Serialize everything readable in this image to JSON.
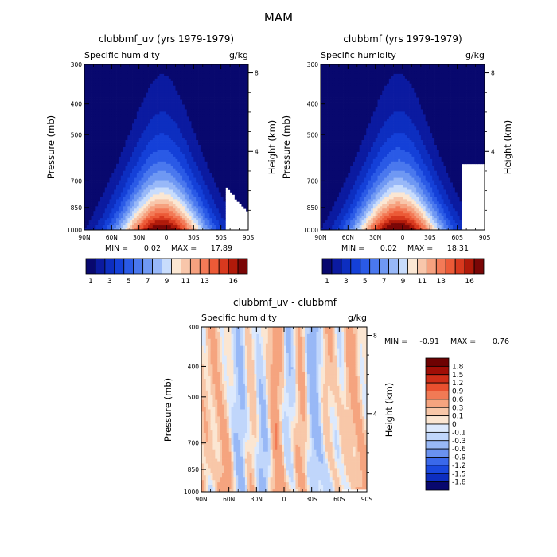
{
  "figure": {
    "title": "MAM"
  },
  "colors": {
    "abs": [
      "#08086e",
      "#0b1aa0",
      "#0d2ec0",
      "#1440d8",
      "#2a5ae6",
      "#4a78ee",
      "#6f98f3",
      "#98b8f8",
      "#c8dcfc",
      "#fbe7d3",
      "#f8c6aa",
      "#f6a17f",
      "#f37a57",
      "#ec5a37",
      "#d8391e",
      "#b01a0a",
      "#7a0606"
    ],
    "diff": [
      "#08086e",
      "#0d2ec0",
      "#1a48de",
      "#3a68ea",
      "#6a92f0",
      "#98b8f6",
      "#c0d6fb",
      "#dce9fd",
      "#fbe6d2",
      "#f8c7a8",
      "#f5a47f",
      "#f17a55",
      "#e9502f",
      "#cf2e18",
      "#a00e06",
      "#6e0202"
    ]
  },
  "chart_data": [
    {
      "type": "contour",
      "title": "clubbmf_uv (yrs 1979-1979)",
      "left_label": "Specific humidity",
      "right_label": "g/kg",
      "ylabel": "Pressure (mb)",
      "ylabel_right": "Height (km)",
      "x_ticks": [
        "90N",
        "60N",
        "30N",
        "0",
        "30S",
        "60S",
        "90S"
      ],
      "xlim": [
        90,
        -90
      ],
      "y_ticks": [
        "300",
        "400",
        "500",
        "700",
        "850",
        "1000"
      ],
      "ylim": [
        300,
        1000
      ],
      "height_ticks": [
        "8",
        "4"
      ],
      "min_label": "MIN =",
      "min_value": "0.02",
      "max_label": "MAX =",
      "max_value": "17.89",
      "field_max": 17.89,
      "colorbar_labels": [
        "1",
        "3",
        "5",
        "7",
        "9",
        "11",
        "13",
        "16"
      ],
      "contour_levels": [
        1,
        2,
        3,
        4,
        5,
        6,
        7,
        8,
        9,
        10,
        11,
        12,
        13,
        14,
        15,
        16
      ]
    },
    {
      "type": "contour",
      "title": "clubbmf (yrs 1979-1979)",
      "left_label": "Specific humidity",
      "right_label": "g/kg",
      "ylabel": "Pressure (mb)",
      "ylabel_right": "Height (km)",
      "x_ticks": [
        "90N",
        "60N",
        "30N",
        "0",
        "30S",
        "60S",
        "90S"
      ],
      "xlim": [
        90,
        -90
      ],
      "y_ticks": [
        "300",
        "400",
        "500",
        "700",
        "850",
        "1000"
      ],
      "ylim": [
        300,
        1000
      ],
      "height_ticks": [
        "8",
        "4"
      ],
      "min_label": "MIN =",
      "min_value": "0.02",
      "max_label": "MAX =",
      "max_value": "18.31",
      "field_max": 18.31,
      "colorbar_labels": [
        "1",
        "3",
        "5",
        "7",
        "9",
        "11",
        "13",
        "16"
      ],
      "contour_levels": [
        1,
        2,
        3,
        4,
        5,
        6,
        7,
        8,
        9,
        10,
        11,
        12,
        13,
        14,
        15,
        16
      ]
    },
    {
      "type": "contour",
      "title": "clubbmf_uv - clubbmf",
      "left_label": "Specific humidity",
      "right_label": "g/kg",
      "ylabel": "Pressure (mb)",
      "ylabel_right": "Height (km)",
      "x_ticks": [
        "90N",
        "60N",
        "30N",
        "0",
        "30S",
        "60S",
        "90S"
      ],
      "xlim": [
        90,
        -90
      ],
      "y_ticks": [
        "300",
        "400",
        "500",
        "700",
        "850",
        "1000"
      ],
      "ylim": [
        300,
        1000
      ],
      "height_ticks": [
        "8",
        "4"
      ],
      "min_label": "MIN =",
      "min_value": "-0.91",
      "max_label": "MAX =",
      "max_value": "0.76",
      "colorbar_labels": [
        "1.8",
        "1.5",
        "1.2",
        "0.9",
        "0.6",
        "0.3",
        "0.1",
        "0",
        "-0.1",
        "-0.3",
        "-0.6",
        "-0.9",
        "-1.2",
        "-1.5",
        "-1.8"
      ],
      "contour_levels": [
        -1.8,
        -1.5,
        -1.2,
        -0.9,
        -0.6,
        -0.3,
        -0.1,
        0,
        0.1,
        0.3,
        0.6,
        0.9,
        1.2,
        1.5,
        1.8
      ]
    }
  ]
}
